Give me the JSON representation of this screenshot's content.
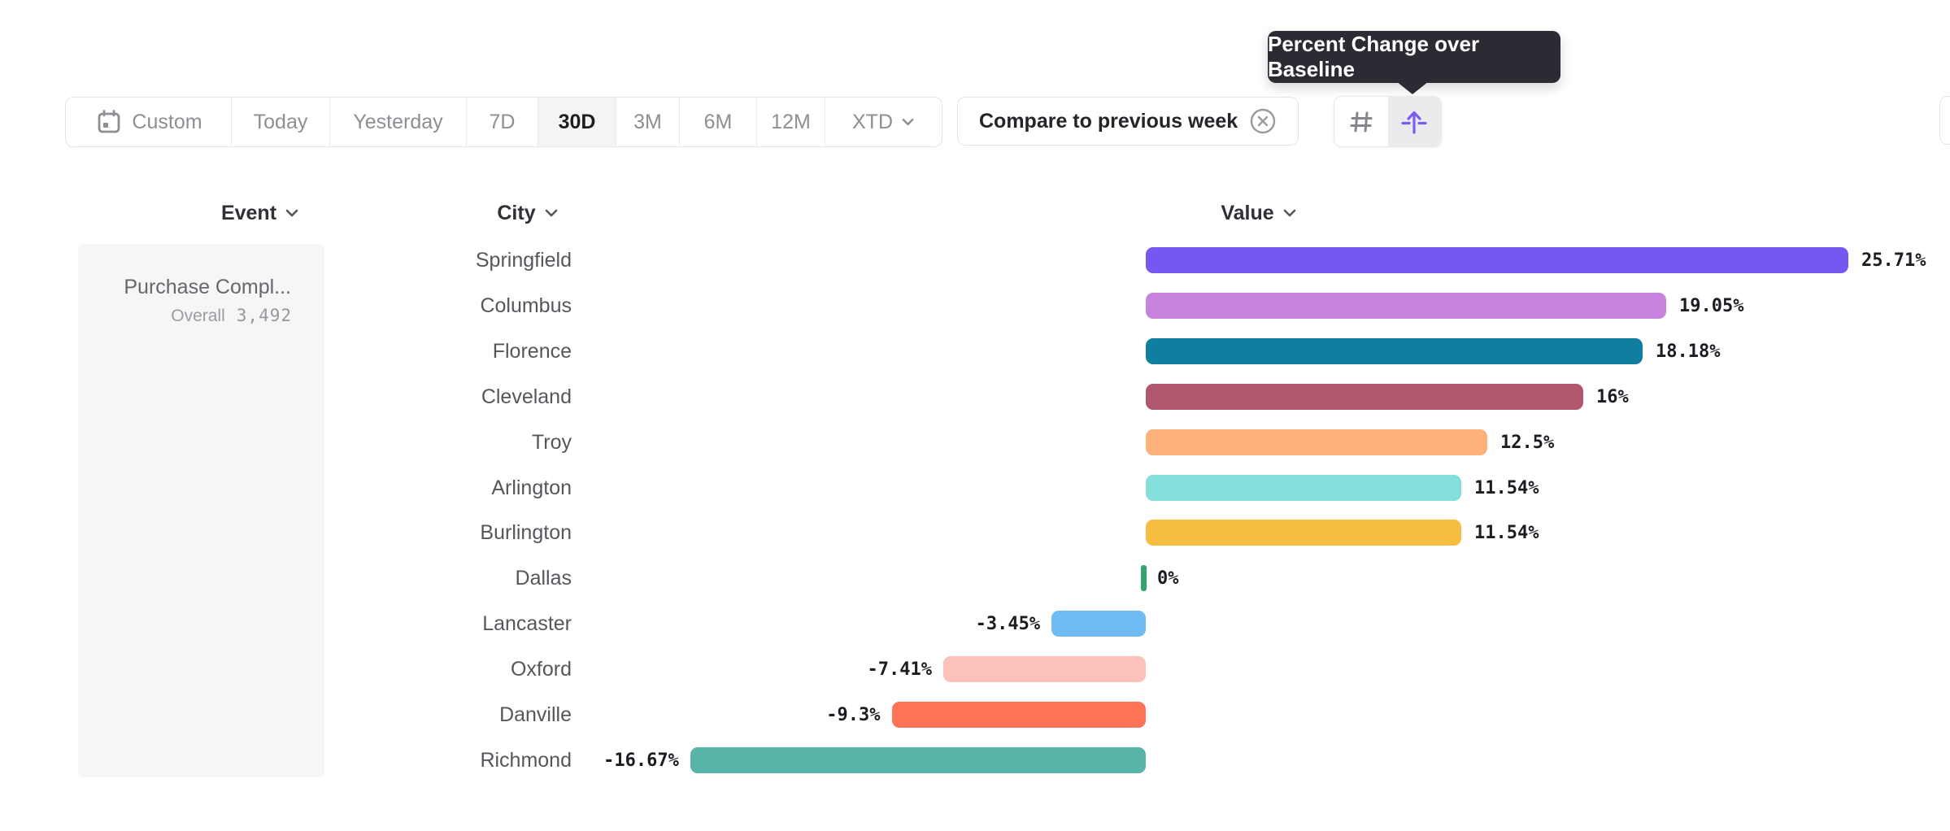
{
  "tooltip": {
    "text": "Percent Change over Baseline"
  },
  "toolbar": {
    "date_ranges": [
      {
        "label": "Custom",
        "icon": "calendar-icon",
        "active": false
      },
      {
        "label": "Today",
        "active": false
      },
      {
        "label": "Yesterday",
        "active": false
      },
      {
        "label": "7D",
        "active": false
      },
      {
        "label": "30D",
        "active": true
      },
      {
        "label": "3M",
        "active": false
      },
      {
        "label": "6M",
        "active": false
      },
      {
        "label": "12M",
        "active": false
      },
      {
        "label": "XTD",
        "active": false,
        "chevron": true
      }
    ],
    "compare": {
      "label": "Compare to previous week",
      "clear_icon": "circle-x-icon"
    },
    "view_toggle": [
      {
        "icon": "hash-icon",
        "active": false
      },
      {
        "icon": "percent-change-baseline-icon",
        "active": true
      }
    ]
  },
  "columns": {
    "event": "Event",
    "city": "City",
    "value": "Value"
  },
  "event_panel": {
    "name": "Purchase Compl...",
    "overall_label": "Overall",
    "overall_value": "3,492"
  },
  "chart_data": {
    "type": "bar",
    "orientation": "horizontal",
    "series_name": "Percent Change over Baseline",
    "categories": [
      "Springfield",
      "Columbus",
      "Florence",
      "Cleveland",
      "Troy",
      "Arlington",
      "Burlington",
      "Dallas",
      "Lancaster",
      "Oxford",
      "Danville",
      "Richmond"
    ],
    "values": [
      25.71,
      19.05,
      18.18,
      16,
      12.5,
      11.54,
      11.54,
      0,
      -3.45,
      -7.41,
      -9.3,
      -16.67
    ],
    "labels": [
      "25.71%",
      "19.05%",
      "18.18%",
      "16%",
      "12.5%",
      "11.54%",
      "11.54%",
      "0%",
      "-3.45%",
      "-7.41%",
      "-9.3%",
      "-16.67%"
    ],
    "colors": [
      "#7757f2",
      "#c783de",
      "#107e9e",
      "#b2586e",
      "#ffb17b",
      "#83dfd9",
      "#f7bd40",
      "#34a36e",
      "#70bbf2",
      "#fcc1b9",
      "#fd7355",
      "#58b4a9"
    ],
    "xlim": [
      -16.67,
      25.71
    ],
    "grid": false,
    "legend": false
  },
  "accent_colors": {
    "toggle_active": "#7a5cf0",
    "tooltip_bg": "#2b2b33",
    "active_segment_bg": "#f4f4f5"
  }
}
